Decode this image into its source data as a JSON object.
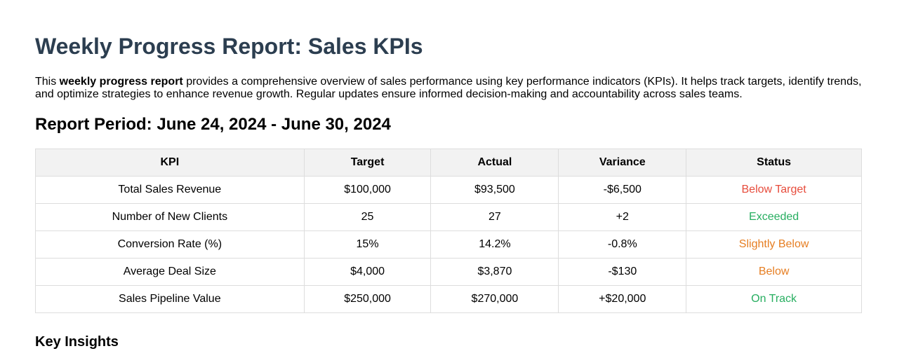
{
  "title": "Weekly Progress Report: Sales KPIs",
  "intro": {
    "prefix": "This ",
    "bold": "weekly progress report",
    "suffix": " provides a comprehensive overview of sales performance using key performance indicators (KPIs). It helps track targets, identify trends, and optimize strategies to enhance revenue growth. Regular updates ensure informed decision-making and accountability across sales teams."
  },
  "period_heading": "Report Period: June 24, 2024 - June 30, 2024",
  "table": {
    "headers": [
      "KPI",
      "Target",
      "Actual",
      "Variance",
      "Status"
    ],
    "rows": [
      {
        "kpi": "Total Sales Revenue",
        "target": "$100,000",
        "actual": "$93,500",
        "variance": "-$6,500",
        "status": "Below Target",
        "status_color": "#e74c3c"
      },
      {
        "kpi": "Number of New Clients",
        "target": "25",
        "actual": "27",
        "variance": "+2",
        "status": "Exceeded",
        "status_color": "#27ae60"
      },
      {
        "kpi": "Conversion Rate (%)",
        "target": "15%",
        "actual": "14.2%",
        "variance": "-0.8%",
        "status": "Slightly Below",
        "status_color": "#e67e22"
      },
      {
        "kpi": "Average Deal Size",
        "target": "$4,000",
        "actual": "$3,870",
        "variance": "-$130",
        "status": "Below",
        "status_color": "#e67e22"
      },
      {
        "kpi": "Sales Pipeline Value",
        "target": "$250,000",
        "actual": "$270,000",
        "variance": "+$20,000",
        "status": "On Track",
        "status_color": "#27ae60"
      }
    ]
  },
  "insights_heading": "Key Insights"
}
